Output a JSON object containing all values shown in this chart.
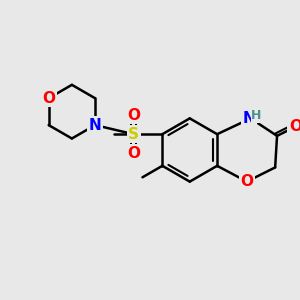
{
  "background_color": "#e8e8e8",
  "bond_color": "#000000",
  "bond_width": 1.8,
  "atom_colors": {
    "O": "#ff0000",
    "N": "#0000ff",
    "S": "#cccc00",
    "H": "#4a9090",
    "C": "#000000"
  },
  "font_size": 10,
  "font_size_small": 8
}
